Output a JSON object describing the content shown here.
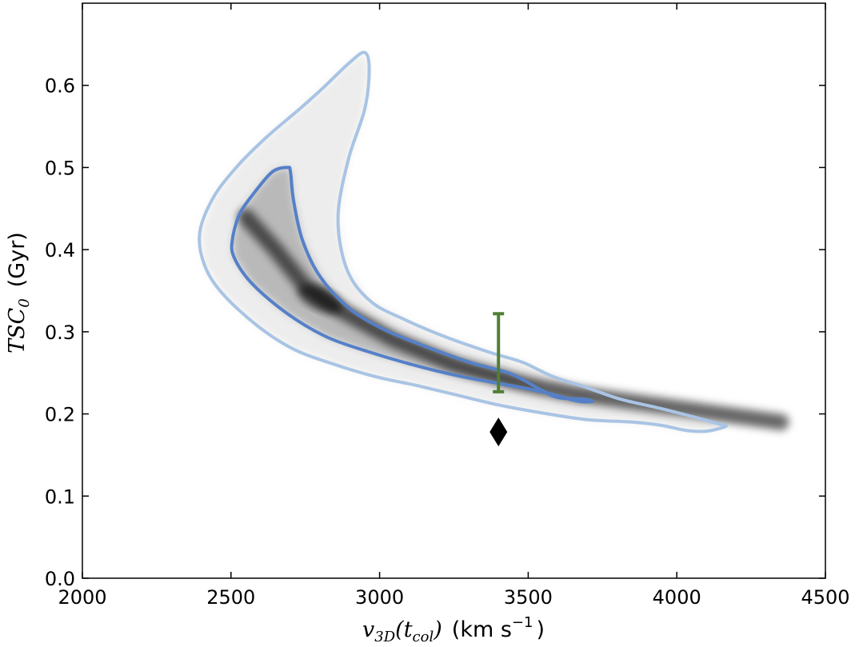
{
  "chart_data": {
    "type": "scatter",
    "title": "",
    "xlabel": "v3D(tcol) (km s−1)",
    "ylabel": "TSC0 (Gyr)",
    "xlim": [
      2000,
      4500
    ],
    "ylim": [
      0.0,
      0.7
    ],
    "x_ticks": [
      "2000",
      "2500",
      "3000",
      "3500",
      "4000",
      "4500"
    ],
    "y_ticks": [
      "0.0",
      "0.1",
      "0.2",
      "0.3",
      "0.4",
      "0.5",
      "0.6"
    ],
    "x_label_parts": {
      "math": "v",
      "sub": "3D",
      "paren": "(t",
      "paren_sub": "col",
      "close": ")",
      "units": "(km s",
      "units_exp": "−1",
      "units_close": ")"
    },
    "y_label_parts": {
      "math": "TSC",
      "sub": "0",
      "units": "(Gyr)"
    },
    "grid": false,
    "density_ridge": {
      "x": [
        2550,
        2650,
        2750,
        2850,
        2950,
        3050,
        3150,
        3250,
        3350,
        3450,
        3550,
        3650,
        3750,
        3850,
        3950,
        4050,
        4150,
        4250,
        4350
      ],
      "y": [
        0.44,
        0.4,
        0.355,
        0.33,
        0.31,
        0.29,
        0.275,
        0.26,
        0.25,
        0.24,
        0.232,
        0.225,
        0.22,
        0.215,
        0.21,
        0.205,
        0.2,
        0.195,
        0.19
      ],
      "peak_x": 2800,
      "peak_y": 0.34
    },
    "contours": [
      {
        "name": "outer",
        "color": "#a9c4e4",
        "x": [
          2950,
          2900,
          2810,
          2730,
          2620,
          2520,
          2440,
          2395,
          2410,
          2470,
          2590,
          2710,
          2850,
          2990,
          3120,
          3260,
          3400,
          3550,
          3700,
          3850,
          3950,
          4030,
          4100,
          4165,
          4140,
          4050,
          3930,
          3810,
          3690,
          3580,
          3480,
          3370,
          3220,
          3090,
          2970,
          2890,
          2860,
          2895,
          2950,
          2965
        ],
        "y": [
          0.64,
          0.628,
          0.597,
          0.571,
          0.537,
          0.501,
          0.463,
          0.421,
          0.382,
          0.347,
          0.307,
          0.279,
          0.26,
          0.245,
          0.235,
          0.223,
          0.211,
          0.201,
          0.193,
          0.19,
          0.186,
          0.18,
          0.179,
          0.185,
          0.188,
          0.197,
          0.208,
          0.218,
          0.233,
          0.246,
          0.263,
          0.275,
          0.294,
          0.314,
          0.337,
          0.376,
          0.439,
          0.51,
          0.571,
          0.62
        ]
      },
      {
        "name": "inner",
        "color": "#5580c8",
        "x": [
          2690,
          2640,
          2580,
          2530,
          2505,
          2510,
          2570,
          2690,
          2820,
          2960,
          3110,
          3270,
          3420,
          3560,
          3660,
          3715,
          3690,
          3600,
          3540,
          3440,
          3310,
          3170,
          3020,
          2900,
          2800,
          2740,
          2710,
          2700
        ],
        "y": [
          0.5,
          0.495,
          0.47,
          0.444,
          0.413,
          0.391,
          0.359,
          0.322,
          0.294,
          0.276,
          0.26,
          0.246,
          0.236,
          0.226,
          0.216,
          0.215,
          0.218,
          0.22,
          0.23,
          0.249,
          0.262,
          0.28,
          0.302,
          0.328,
          0.367,
          0.412,
          0.461,
          0.495
        ]
      }
    ],
    "error_bar": {
      "x": 3400,
      "y_low": 0.227,
      "y_high": 0.322,
      "color": "#4f7f34"
    },
    "marker": {
      "x": 3400,
      "y": 0.178,
      "shape": "diamond",
      "color": "#000000"
    }
  }
}
